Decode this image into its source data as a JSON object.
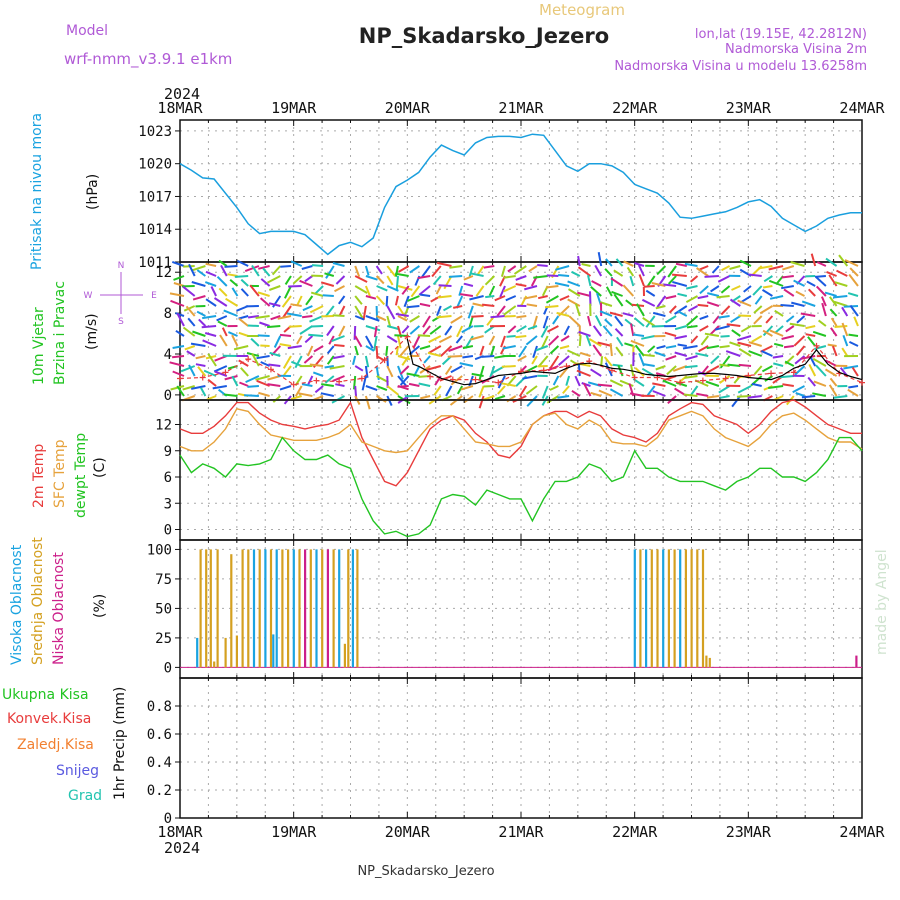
{
  "header": {
    "model_label": "Model",
    "model_name": "wrf-nmm_v3.9.1 e1km",
    "meteogram_label": "Meteogram",
    "station": "NP_Skadarsko_Jezero",
    "lonlat": "lon,lat (19.15E, 42.2812N)",
    "elev": "Nadmorska Visina 2m",
    "model_elev": "Nadmorska Visina u modelu 13.6258m",
    "footer_station": "NP_Skadarsko_Jezero",
    "credit": "made by Angel"
  },
  "time_axis": {
    "year": "2024",
    "days": [
      "18MAR",
      "19MAR",
      "20MAR",
      "21MAR",
      "22MAR",
      "23MAR",
      "24MAR"
    ]
  },
  "colors": {
    "pressure": "#1a9fde",
    "temp2m": "#e83c3c",
    "sfc_temp": "#e6a23c",
    "dewpt": "#22c422",
    "high_cloud": "#1aa3e0",
    "mid_cloud": "#d4a020",
    "low_cloud": "#cc1f8a",
    "wind_speed": "#000000",
    "gust": "#e83c3c"
  },
  "panel_labels": {
    "pressure": [
      "Pritisak na nivou mora",
      "(hPa)"
    ],
    "wind": [
      "10m Vjetar",
      "Brzina i Pravac",
      "(m/s)"
    ],
    "compass": [
      "N",
      "W",
      "E",
      "S"
    ],
    "temp": [
      "2m Temp",
      "SFC Temp",
      "dewpt Temp",
      "(C)"
    ],
    "cloud": [
      "Visoka Oblacnost",
      "Srednja Oblacnost",
      "Niska Oblacnost",
      "(%)"
    ],
    "precip_legend": [
      "Ukupna Kisa",
      "Konvek.Kisa",
      "Zaledj.Kisa",
      "Snijeg",
      "Grad"
    ],
    "precip_axis": "1hr Precip (mm)"
  },
  "chart_data": [
    {
      "type": "line",
      "name": "pressure",
      "x_unit": "days from 18MAR 00Z",
      "ylabel": "Pritisak na nivou mora (hPa)",
      "ylim": [
        1011,
        1024
      ],
      "yticks": [
        1011,
        1014,
        1017,
        1020,
        1023
      ],
      "x": [
        0,
        0.1,
        0.2,
        0.3,
        0.5,
        0.6,
        0.7,
        0.8,
        1.0,
        1.1,
        1.2,
        1.3,
        1.4,
        1.5,
        1.6,
        1.7,
        1.8,
        1.9,
        2.0,
        2.1,
        2.2,
        2.3,
        2.4,
        2.5,
        2.6,
        2.7,
        2.8,
        2.9,
        3.0,
        3.1,
        3.2,
        3.3,
        3.4,
        3.5,
        3.6,
        3.7,
        3.8,
        3.9,
        4.0,
        4.1,
        4.2,
        4.3,
        4.4,
        4.5,
        4.6,
        4.7,
        4.8,
        4.9,
        5.0,
        5.1,
        5.2,
        5.3,
        5.4,
        5.5,
        5.6,
        5.7,
        5.8,
        5.9,
        6.0
      ],
      "y": [
        1020.0,
        1019.4,
        1018.7,
        1018.6,
        1016.0,
        1014.5,
        1013.6,
        1013.8,
        1013.8,
        1013.5,
        1012.6,
        1011.7,
        1012.5,
        1012.8,
        1012.4,
        1013.2,
        1016.0,
        1017.9,
        1018.5,
        1019.2,
        1020.6,
        1021.7,
        1021.2,
        1020.8,
        1021.9,
        1022.4,
        1022.5,
        1022.5,
        1022.4,
        1022.7,
        1022.6,
        1021.2,
        1019.8,
        1019.3,
        1020.0,
        1020.0,
        1019.8,
        1019.2,
        1018.1,
        1017.7,
        1017.3,
        1016.4,
        1015.1,
        1015.0,
        1015.2,
        1015.4,
        1015.6,
        1016.0,
        1016.5,
        1016.7,
        1016.1,
        1015.0,
        1014.4,
        1013.8,
        1014.3,
        1015.0,
        1015.3,
        1015.5,
        1015.5
      ]
    },
    {
      "type": "line",
      "name": "wind",
      "ylabel": "10m Vjetar Brzina i Pravac (m/s)",
      "ylim": [
        -0.5,
        13
      ],
      "yticks": [
        0,
        4,
        8,
        12
      ],
      "series": [
        {
          "key": "speed",
          "values_x": [
            2.0,
            2.05,
            2.1,
            2.15,
            2.2,
            2.3,
            2.4,
            2.5,
            2.6,
            2.7,
            2.8,
            2.9,
            3.0,
            3.1,
            3.2,
            3.3,
            3.4,
            3.5,
            3.6,
            3.7,
            3.8,
            3.9,
            4.0,
            4.1,
            4.2,
            4.3,
            4.4,
            4.5,
            4.6,
            4.7,
            4.8,
            4.9,
            5.0,
            5.1,
            5.2,
            5.3,
            5.4,
            5.5,
            5.6,
            5.7,
            5.8,
            5.9,
            6.0
          ],
          "values": [
            5.5,
            3.0,
            2.8,
            2.5,
            2.2,
            1.6,
            1.3,
            1.0,
            1.1,
            1.5,
            1.9,
            2.0,
            2.1,
            2.3,
            2.2,
            2.1,
            2.6,
            3.0,
            3.1,
            2.9,
            2.6,
            2.5,
            2.3,
            2.0,
            1.9,
            1.8,
            1.9,
            2.0,
            2.1,
            2.1,
            2.0,
            1.9,
            1.7,
            1.6,
            1.5,
            1.9,
            2.6,
            3.0,
            4.4,
            3.0,
            2.2,
            1.8,
            1.5
          ]
        },
        {
          "key": "gust",
          "values_x": [
            0,
            0.2,
            0.4,
            0.6,
            0.8,
            1.0,
            1.2,
            1.4,
            1.6,
            1.8,
            2.0,
            2.2,
            2.4,
            2.6,
            2.8,
            3.0,
            3.2,
            3.4,
            3.6,
            3.8,
            4.0,
            4.2,
            4.4,
            4.6,
            4.8,
            5.0,
            5.2,
            5.4,
            5.6,
            5.8,
            6.0
          ],
          "values": [
            1.6,
            1.7,
            2.2,
            3.5,
            2.5,
            1.0,
            1.4,
            1.3,
            1.6,
            3.4,
            5.7,
            1.8,
            1.5,
            1.5,
            1.2,
            2.3,
            2.4,
            2.8,
            3.3,
            2.4,
            1.7,
            1.7,
            1.2,
            1.4,
            1.6,
            1.9,
            2.1,
            2.2,
            4.8,
            2.1,
            1.2
          ]
        }
      ],
      "barbs_per_row": 64,
      "barb_rows": 14
    },
    {
      "type": "line",
      "name": "temperature",
      "ylabel": "(C)",
      "ylim": [
        -1.2,
        14.8
      ],
      "yticks": [
        0,
        3,
        6,
        9,
        12
      ],
      "x": [
        0,
        0.1,
        0.2,
        0.3,
        0.4,
        0.5,
        0.6,
        0.7,
        0.8,
        0.9,
        1.0,
        1.1,
        1.2,
        1.3,
        1.4,
        1.5,
        1.6,
        1.7,
        1.8,
        1.9,
        2.0,
        2.1,
        2.2,
        2.3,
        2.4,
        2.5,
        2.6,
        2.7,
        2.8,
        2.9,
        3.0,
        3.1,
        3.2,
        3.3,
        3.4,
        3.5,
        3.6,
        3.7,
        3.8,
        3.9,
        4.0,
        4.1,
        4.2,
        4.3,
        4.4,
        4.5,
        4.6,
        4.7,
        4.8,
        4.9,
        5.0,
        5.1,
        5.2,
        5.3,
        5.4,
        5.5,
        5.6,
        5.7,
        5.8,
        5.9,
        6.0
      ],
      "series": [
        {
          "key": "temp2m",
          "values": [
            11.5,
            11.0,
            11.0,
            11.8,
            13.0,
            14.5,
            14.5,
            13.3,
            12.5,
            12.0,
            11.8,
            11.5,
            11.8,
            12.0,
            12.5,
            14.5,
            10.5,
            8.0,
            5.5,
            5.0,
            6.5,
            9.0,
            11.5,
            12.5,
            13.0,
            12.5,
            11.0,
            10.0,
            8.5,
            8.2,
            9.5,
            12.0,
            13.0,
            13.5,
            13.5,
            12.8,
            13.5,
            13.0,
            11.5,
            10.8,
            10.5,
            10.0,
            11.0,
            13.0,
            13.8,
            14.5,
            14.3,
            13.0,
            12.5,
            12.0,
            11.0,
            12.0,
            13.5,
            14.5,
            14.8,
            14.0,
            13.0,
            12.0,
            11.5,
            11.0,
            11.0
          ]
        },
        {
          "key": "sfc_temp",
          "values": [
            9.5,
            9.0,
            9.0,
            10.0,
            11.5,
            13.8,
            13.5,
            12.0,
            10.8,
            10.5,
            10.2,
            10.2,
            10.2,
            10.5,
            11.0,
            12.0,
            10.0,
            9.5,
            9.0,
            8.8,
            9.0,
            10.5,
            12.0,
            13.0,
            13.0,
            11.5,
            10.0,
            9.8,
            9.5,
            9.5,
            10.0,
            12.0,
            13.0,
            13.3,
            12.0,
            11.5,
            12.5,
            11.8,
            10.0,
            9.8,
            9.8,
            9.5,
            10.5,
            12.5,
            13.0,
            13.5,
            13.0,
            11.5,
            10.5,
            10.0,
            9.5,
            10.5,
            12.0,
            13.0,
            13.3,
            12.5,
            11.5,
            10.5,
            10.0,
            10.0,
            9.2
          ]
        },
        {
          "key": "dewpt",
          "values": [
            8.5,
            6.5,
            7.5,
            7.0,
            6.0,
            7.5,
            7.3,
            7.5,
            8.0,
            10.5,
            9.0,
            8.0,
            8.0,
            8.5,
            7.5,
            7.0,
            3.5,
            1.0,
            -0.5,
            -0.2,
            -0.8,
            -0.5,
            0.5,
            3.5,
            4.0,
            3.8,
            2.8,
            4.5,
            4.0,
            3.5,
            3.5,
            1.0,
            3.5,
            5.5,
            5.5,
            6.0,
            7.5,
            7.0,
            5.5,
            6.0,
            9.0,
            7.0,
            7.0,
            6.0,
            5.5,
            5.5,
            5.5,
            5.0,
            4.5,
            5.5,
            6.0,
            7.0,
            7.0,
            6.0,
            6.0,
            5.5,
            6.5,
            8.0,
            10.5,
            10.5,
            9.0
          ]
        }
      ]
    },
    {
      "type": "bar",
      "name": "cloud_cover",
      "ylabel": "(%)",
      "ylim": [
        0,
        100
      ],
      "yticks": [
        0,
        25,
        50,
        75,
        100
      ],
      "bars": [
        {
          "t": 0.15,
          "v": 25,
          "c": "high"
        },
        {
          "t": 0.18,
          "v": 100,
          "c": "mid"
        },
        {
          "t": 0.23,
          "v": 100,
          "c": "mid"
        },
        {
          "t": 0.27,
          "v": 100,
          "c": "mid"
        },
        {
          "t": 0.3,
          "v": 5,
          "c": "mid"
        },
        {
          "t": 0.33,
          "v": 100,
          "c": "mid"
        },
        {
          "t": 0.4,
          "v": 25,
          "c": "mid"
        },
        {
          "t": 0.45,
          "v": 96,
          "c": "mid"
        },
        {
          "t": 0.5,
          "v": 27,
          "c": "mid"
        },
        {
          "t": 0.55,
          "v": 100,
          "c": "mid"
        },
        {
          "t": 0.6,
          "v": 100,
          "c": "mid"
        },
        {
          "t": 0.65,
          "v": 100,
          "c": "high"
        },
        {
          "t": 0.7,
          "v": 100,
          "c": "mid"
        },
        {
          "t": 0.75,
          "v": 100,
          "c": "high"
        },
        {
          "t": 0.8,
          "v": 100,
          "c": "mid"
        },
        {
          "t": 0.82,
          "v": 28,
          "c": "high"
        },
        {
          "t": 0.85,
          "v": 100,
          "c": "high"
        },
        {
          "t": 0.9,
          "v": 100,
          "c": "mid"
        },
        {
          "t": 0.95,
          "v": 100,
          "c": "mid"
        },
        {
          "t": 1.0,
          "v": 100,
          "c": "high"
        },
        {
          "t": 1.05,
          "v": 100,
          "c": "mid"
        },
        {
          "t": 1.1,
          "v": 100,
          "c": "low"
        },
        {
          "t": 1.15,
          "v": 100,
          "c": "mid"
        },
        {
          "t": 1.2,
          "v": 100,
          "c": "high"
        },
        {
          "t": 1.25,
          "v": 100,
          "c": "mid"
        },
        {
          "t": 1.3,
          "v": 100,
          "c": "low"
        },
        {
          "t": 1.35,
          "v": 100,
          "c": "mid"
        },
        {
          "t": 1.4,
          "v": 100,
          "c": "high"
        },
        {
          "t": 1.45,
          "v": 20,
          "c": "mid"
        },
        {
          "t": 1.48,
          "v": 100,
          "c": "mid"
        },
        {
          "t": 1.52,
          "v": 100,
          "c": "high"
        },
        {
          "t": 1.56,
          "v": 100,
          "c": "mid"
        },
        {
          "t": 4.0,
          "v": 100,
          "c": "high"
        },
        {
          "t": 4.05,
          "v": 100,
          "c": "mid"
        },
        {
          "t": 4.1,
          "v": 100,
          "c": "high"
        },
        {
          "t": 4.15,
          "v": 100,
          "c": "mid"
        },
        {
          "t": 4.2,
          "v": 100,
          "c": "mid"
        },
        {
          "t": 4.25,
          "v": 100,
          "c": "high"
        },
        {
          "t": 4.3,
          "v": 100,
          "c": "mid"
        },
        {
          "t": 4.35,
          "v": 100,
          "c": "mid"
        },
        {
          "t": 4.4,
          "v": 100,
          "c": "high"
        },
        {
          "t": 4.45,
          "v": 100,
          "c": "mid"
        },
        {
          "t": 4.5,
          "v": 100,
          "c": "mid"
        },
        {
          "t": 4.55,
          "v": 100,
          "c": "mid"
        },
        {
          "t": 4.6,
          "v": 100,
          "c": "mid"
        },
        {
          "t": 4.63,
          "v": 10,
          "c": "mid"
        },
        {
          "t": 4.66,
          "v": 8,
          "c": "mid"
        },
        {
          "t": 5.95,
          "v": 10,
          "c": "low"
        }
      ]
    },
    {
      "type": "line",
      "name": "precipitation",
      "ylabel": "1hr Precip (mm)",
      "ylim": [
        0,
        1.0
      ],
      "yticks": [
        0,
        0.2,
        0.4,
        0.6,
        0.8
      ],
      "values": []
    }
  ]
}
